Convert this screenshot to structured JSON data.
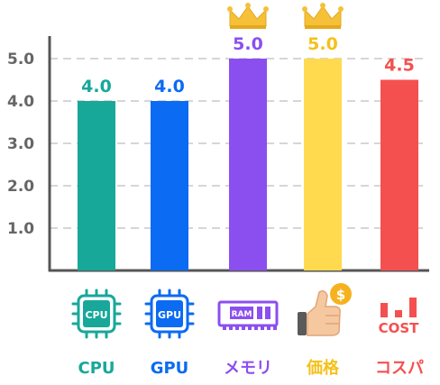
{
  "chart_data": {
    "type": "bar",
    "categories": [
      "CPU",
      "GPU",
      "メモリ",
      "価格",
      "コスパ"
    ],
    "values": [
      4.0,
      4.0,
      5.0,
      5.0,
      4.5
    ],
    "value_labels": [
      "4.0",
      "4.0",
      "5.0",
      "5.0",
      "4.5"
    ],
    "colors": [
      "#17A89A",
      "#0B6BF2",
      "#8B4FF0",
      "#FFDA4F",
      "#F45050"
    ],
    "label_colors": [
      "#17A89A",
      "#0B6BF2",
      "#8B4FF0",
      "#F5C11A",
      "#F45050"
    ],
    "crowned": [
      false,
      false,
      true,
      true,
      false
    ],
    "icons": [
      "cpu-chip-icon",
      "gpu-chip-icon",
      "ram-module-icon",
      "thumbs-up-coin-icon",
      "cost-bars-icon"
    ],
    "icon_texts": [
      "CPU",
      "GPU",
      "RAM",
      "$",
      "COST"
    ],
    "ytick_labels": [
      "1.0",
      "2.0",
      "3.0",
      "4.0",
      "5.0"
    ],
    "ylim": [
      0,
      5.5
    ],
    "grid": true,
    "title": "",
    "xlabel": "",
    "ylabel": ""
  }
}
